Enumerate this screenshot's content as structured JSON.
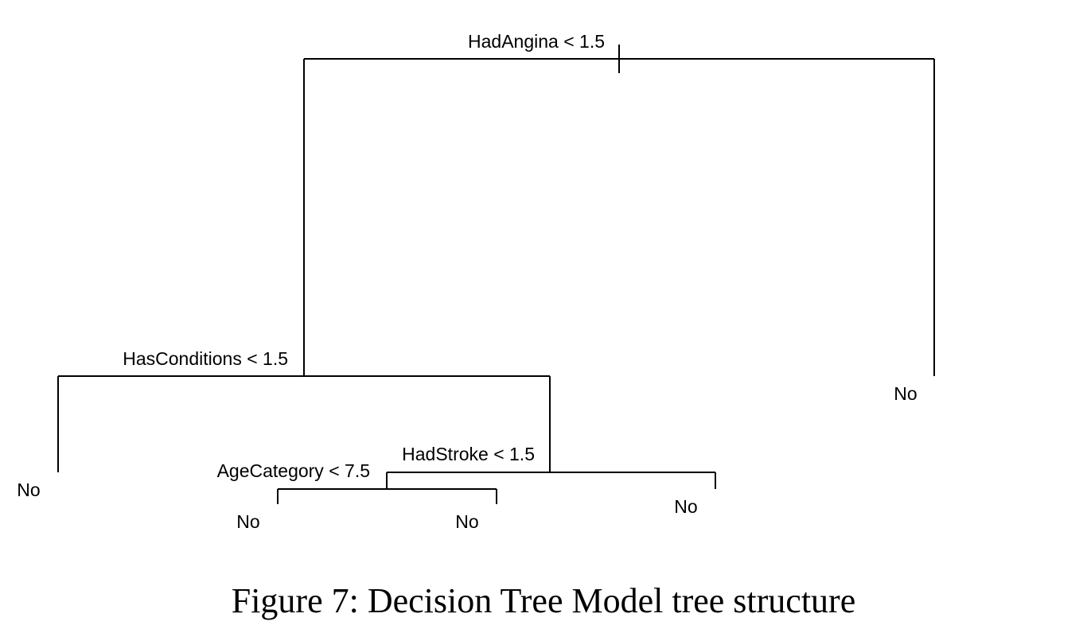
{
  "tree": {
    "root": {
      "label": "HadAngina < 1.5",
      "left": {
        "label": "HasConditions < 1.5",
        "left": {
          "leaf": "No"
        },
        "right": {
          "label": "HadStroke < 1.5",
          "left": {
            "label": "AgeCategory < 7.5",
            "left": {
              "leaf": "No"
            },
            "right": {
              "leaf": "No"
            }
          },
          "right": {
            "leaf": "No"
          }
        }
      },
      "right": {
        "leaf": "No"
      }
    }
  },
  "caption": "Figure 7: Decision Tree Model tree structure"
}
